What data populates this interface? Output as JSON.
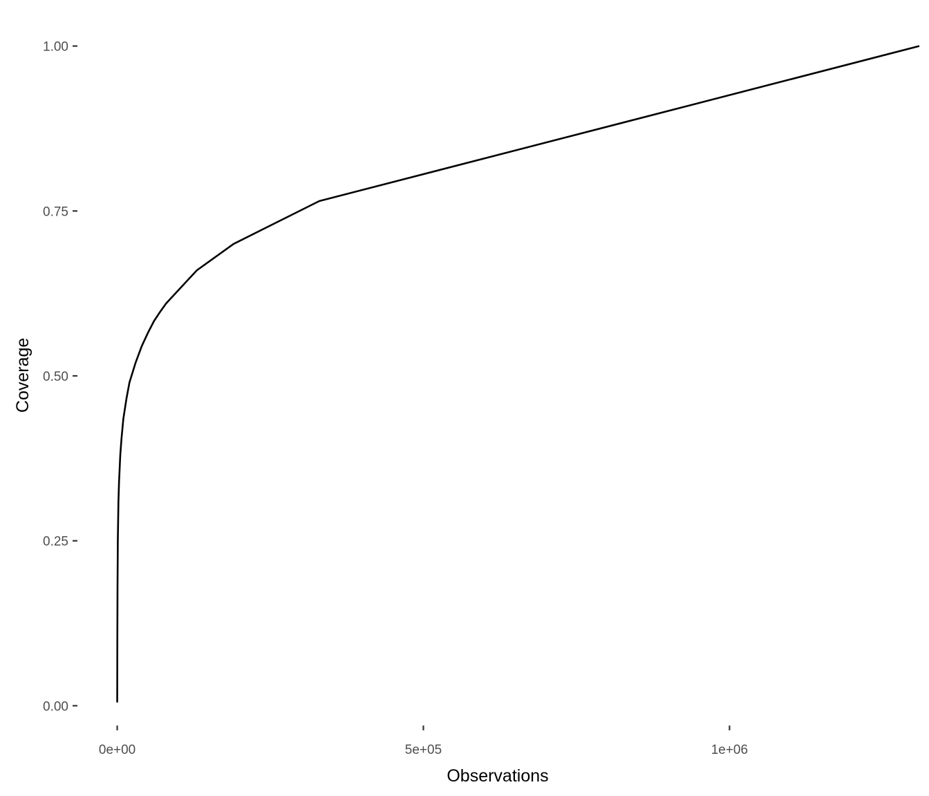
{
  "chart_data": {
    "type": "line",
    "title": "",
    "xlabel": "Observations",
    "ylabel": "Coverage",
    "xlim": [
      -65000,
      1310000
    ],
    "ylim": [
      -0.03,
      1.03
    ],
    "x_ticks": [
      0,
      500000,
      1000000
    ],
    "x_tick_labels": [
      "0e+00",
      "5e+05",
      "1e+06"
    ],
    "y_ticks": [
      0,
      0.25,
      0.5,
      0.75,
      1
    ],
    "y_tick_labels": [
      "0.00",
      "0.25",
      "0.50",
      "0.75",
      "1.00"
    ],
    "grid": false,
    "legend": "none",
    "line_color": "#000000",
    "series": [
      {
        "x": [
          0,
          100,
          200,
          500,
          1000,
          2000,
          3000,
          5000,
          7000,
          10000,
          15000,
          20000,
          25000,
          30000,
          40000,
          50000,
          60000,
          70000,
          80000,
          100000,
          130000,
          190000,
          330000,
          1310000
        ],
        "y": [
          0.005,
          0.05,
          0.1,
          0.18,
          0.25,
          0.31,
          0.34,
          0.38,
          0.405,
          0.435,
          0.465,
          0.49,
          0.505,
          0.52,
          0.545,
          0.565,
          0.583,
          0.597,
          0.61,
          0.63,
          0.66,
          0.7,
          0.765,
          1.0
        ]
      }
    ]
  }
}
